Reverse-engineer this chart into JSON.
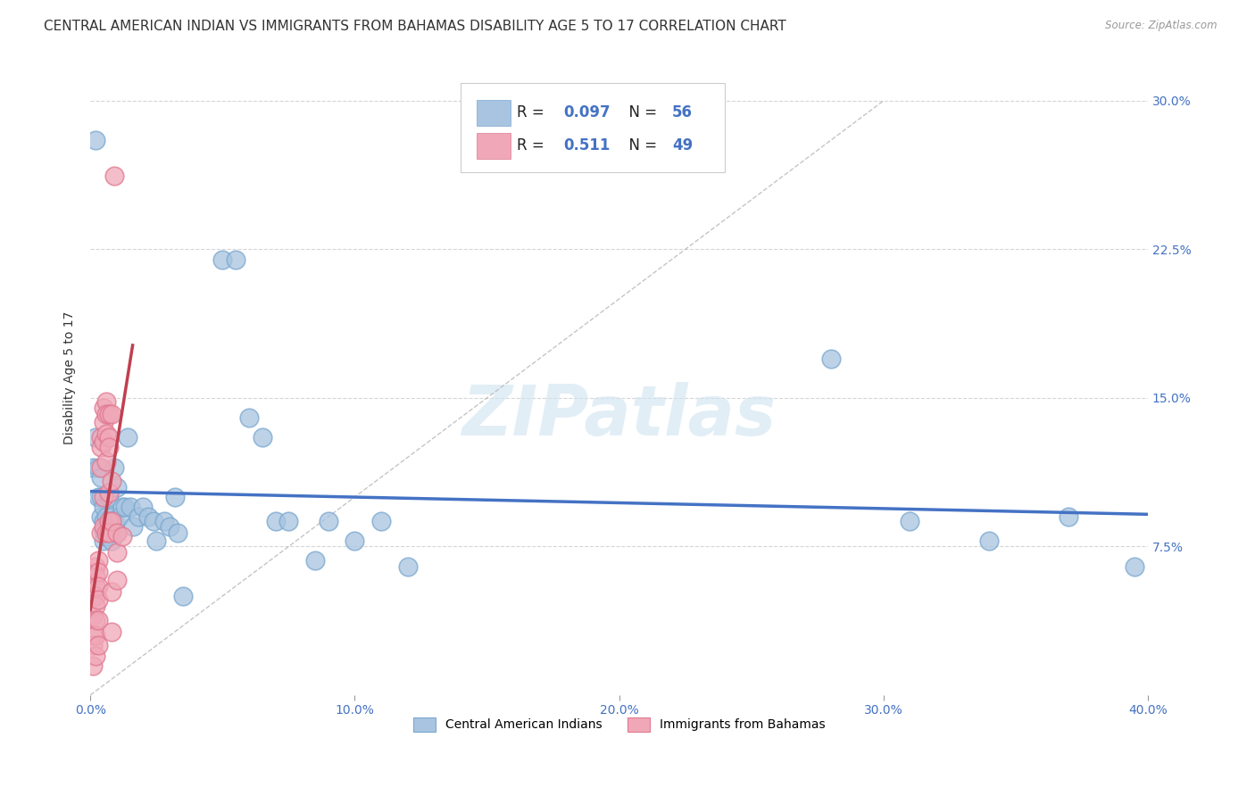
{
  "title": "CENTRAL AMERICAN INDIAN VS IMMIGRANTS FROM BAHAMAS DISABILITY AGE 5 TO 17 CORRELATION CHART",
  "source": "Source: ZipAtlas.com",
  "ylabel": "Disability Age 5 to 17",
  "xlim": [
    0.0,
    0.4
  ],
  "ylim": [
    0.0,
    0.32
  ],
  "xticks": [
    0.0,
    0.1,
    0.2,
    0.3,
    0.4
  ],
  "xticklabels": [
    "0.0%",
    "10.0%",
    "20.0%",
    "30.0%",
    "40.0%"
  ],
  "yticks": [
    0.075,
    0.15,
    0.225,
    0.3
  ],
  "yticklabels": [
    "7.5%",
    "15.0%",
    "22.5%",
    "30.0%"
  ],
  "background_color": "#ffffff",
  "grid_color": "#cccccc",
  "blue_R": 0.097,
  "blue_N": 56,
  "pink_R": 0.511,
  "pink_N": 49,
  "blue_dot_color": "#a8c4e0",
  "pink_dot_color": "#f0a8b8",
  "blue_line_color": "#4472c4",
  "pink_line_color": "#c04050",
  "diag_line_color": "#bbbbbb",
  "blue_label": "Central American Indians",
  "pink_label": "Immigrants from Bahamas",
  "watermark": "ZIPatlas",
  "watermark_color": "#d0e4f0",
  "blue_scatter_x": [
    0.001,
    0.002,
    0.002,
    0.003,
    0.003,
    0.004,
    0.004,
    0.004,
    0.005,
    0.005,
    0.005,
    0.005,
    0.006,
    0.006,
    0.006,
    0.007,
    0.007,
    0.008,
    0.008,
    0.008,
    0.009,
    0.009,
    0.01,
    0.01,
    0.011,
    0.012,
    0.013,
    0.014,
    0.015,
    0.016,
    0.018,
    0.02,
    0.022,
    0.024,
    0.025,
    0.028,
    0.03,
    0.032,
    0.033,
    0.035,
    0.05,
    0.055,
    0.06,
    0.065,
    0.07,
    0.075,
    0.085,
    0.09,
    0.1,
    0.11,
    0.12,
    0.28,
    0.31,
    0.34,
    0.37,
    0.395
  ],
  "blue_scatter_y": [
    0.115,
    0.28,
    0.13,
    0.115,
    0.1,
    0.1,
    0.09,
    0.11,
    0.095,
    0.088,
    0.083,
    0.078,
    0.09,
    0.085,
    0.08,
    0.088,
    0.1,
    0.09,
    0.085,
    0.078,
    0.088,
    0.115,
    0.105,
    0.082,
    0.09,
    0.095,
    0.095,
    0.13,
    0.095,
    0.085,
    0.09,
    0.095,
    0.09,
    0.088,
    0.078,
    0.088,
    0.085,
    0.1,
    0.082,
    0.05,
    0.22,
    0.22,
    0.14,
    0.13,
    0.088,
    0.088,
    0.068,
    0.088,
    0.078,
    0.088,
    0.065,
    0.17,
    0.088,
    0.078,
    0.09,
    0.065
  ],
  "pink_scatter_x": [
    0.001,
    0.001,
    0.001,
    0.001,
    0.001,
    0.002,
    0.002,
    0.002,
    0.002,
    0.002,
    0.002,
    0.002,
    0.002,
    0.003,
    0.003,
    0.003,
    0.003,
    0.003,
    0.003,
    0.004,
    0.004,
    0.004,
    0.004,
    0.005,
    0.005,
    0.005,
    0.005,
    0.005,
    0.006,
    0.006,
    0.006,
    0.006,
    0.006,
    0.007,
    0.007,
    0.007,
    0.007,
    0.007,
    0.007,
    0.008,
    0.008,
    0.008,
    0.008,
    0.008,
    0.009,
    0.01,
    0.01,
    0.01,
    0.012
  ],
  "pink_scatter_y": [
    0.05,
    0.04,
    0.03,
    0.025,
    0.015,
    0.065,
    0.06,
    0.055,
    0.05,
    0.045,
    0.038,
    0.03,
    0.02,
    0.068,
    0.062,
    0.055,
    0.048,
    0.038,
    0.025,
    0.13,
    0.125,
    0.115,
    0.082,
    0.145,
    0.138,
    0.128,
    0.1,
    0.085,
    0.148,
    0.132,
    0.142,
    0.118,
    0.082,
    0.088,
    0.13,
    0.125,
    0.142,
    0.102,
    0.082,
    0.142,
    0.108,
    0.088,
    0.052,
    0.032,
    0.262,
    0.082,
    0.072,
    0.058,
    0.08
  ],
  "title_fontsize": 11,
  "axis_fontsize": 10,
  "tick_fontsize": 10,
  "legend_fontsize": 12
}
